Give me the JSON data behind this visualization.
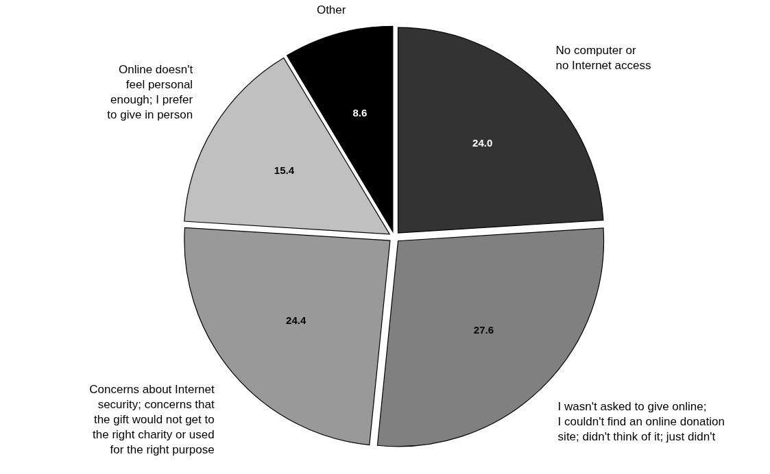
{
  "chart_data": {
    "type": "pie",
    "categories": [
      "No computer or\nno Internet access",
      "I wasn't asked to give online;\nI couldn't find an online donation\nsite; didn't think of it; just didn't",
      "Concerns about Internet\nsecurity; concerns that\nthe gift would not get to\nthe right charity or used\nfor the right purpose",
      "Online doesn't\nfeel personal\nenough; I prefer\nto give in person",
      "Other"
    ],
    "values": [
      24.0,
      27.6,
      24.4,
      15.4,
      8.6
    ],
    "colors": [
      "#333333",
      "#808080",
      "#999999",
      "#c0c0c0",
      "#000000"
    ],
    "value_labels": [
      "24.0",
      "27.6",
      "24.4",
      "15.4",
      "8.6"
    ]
  }
}
